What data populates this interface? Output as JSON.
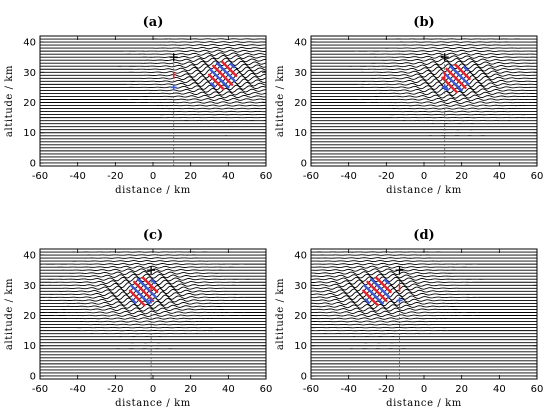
{
  "colors": {
    "line": "#000000",
    "red": "#e8202a",
    "blue": "#3b5bdb",
    "dash": "#555555"
  },
  "chart_data": [
    {
      "type": "line",
      "title": "(a)",
      "xlabel": "distance / km",
      "ylabel": "altitude / km",
      "xlim": [
        -60,
        60
      ],
      "ylim": [
        -1,
        42
      ],
      "xticks": [
        -60,
        -40,
        -20,
        0,
        20,
        40,
        60
      ],
      "yticks": [
        0,
        10,
        20,
        30,
        40
      ],
      "grid": false,
      "packet_center": [
        37,
        29
      ],
      "marker_x": 11,
      "plus_altitude": 35,
      "red_marker_altitude": 29,
      "blue_marker_altitude": 25
    },
    {
      "type": "line",
      "title": "(b)",
      "xlabel": "distance / km",
      "ylabel": "altitude / km",
      "xlim": [
        -60,
        60
      ],
      "ylim": [
        -1,
        42
      ],
      "xticks": [
        -60,
        -40,
        -20,
        0,
        20,
        40,
        60
      ],
      "yticks": [
        0,
        10,
        20,
        30,
        40
      ],
      "grid": false,
      "packet_center": [
        17,
        28
      ],
      "marker_x": 11,
      "plus_altitude": 35,
      "red_marker_altitude": 29,
      "blue_marker_altitude": 25
    },
    {
      "type": "line",
      "title": "(c)",
      "xlabel": "distance / km",
      "ylabel": "altitude / km",
      "xlim": [
        -60,
        60
      ],
      "ylim": [
        -1,
        42
      ],
      "xticks": [
        -60,
        -40,
        -20,
        0,
        20,
        40,
        60
      ],
      "yticks": [
        0,
        10,
        20,
        30,
        40
      ],
      "grid": false,
      "packet_center": [
        -5,
        28
      ],
      "marker_x": -1,
      "plus_altitude": 35,
      "red_marker_altitude": 29,
      "blue_marker_altitude": 25
    },
    {
      "type": "line",
      "title": "(d)",
      "xlabel": "distance / km",
      "ylabel": "altitude / km",
      "xlim": [
        -60,
        60
      ],
      "ylim": [
        -1,
        42
      ],
      "xticks": [
        -60,
        -40,
        -20,
        0,
        20,
        40,
        60
      ],
      "yticks": [
        0,
        10,
        20,
        30,
        40
      ],
      "grid": false,
      "packet_center": [
        -25,
        28
      ],
      "marker_x": -13,
      "plus_altitude": 35,
      "red_marker_altitude": 29,
      "blue_marker_altitude": 25
    }
  ]
}
